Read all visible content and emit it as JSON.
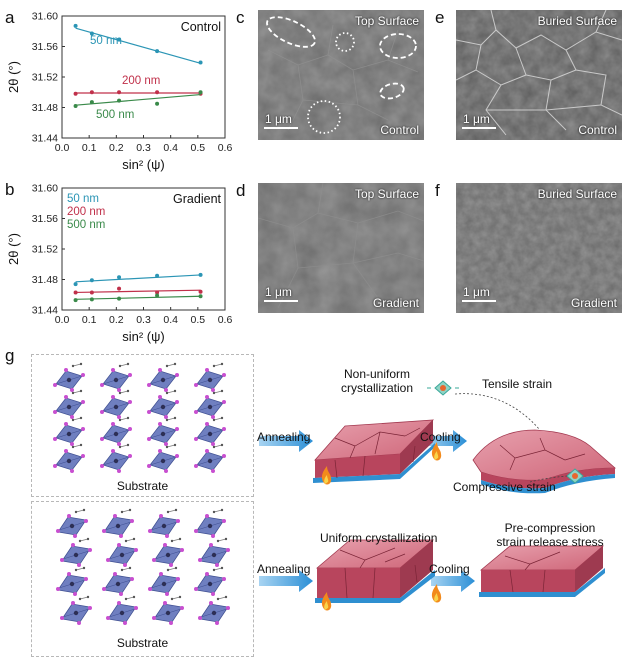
{
  "panels": {
    "a": "a",
    "b": "b",
    "c": "c",
    "d": "d",
    "e": "e",
    "f": "f",
    "g": "g"
  },
  "chart_data": [
    {
      "type": "scatter",
      "panel": "a",
      "title": "Control",
      "xlabel": "sin² (ψ)",
      "ylabel": "2θ (°)",
      "xlim": [
        0.0,
        0.6
      ],
      "ylim": [
        31.44,
        31.6
      ],
      "xticks": [
        "0.0",
        "0.1",
        "0.2",
        "0.3",
        "0.4",
        "0.5",
        "0.6"
      ],
      "yticks": [
        "31.44",
        "31.48",
        "31.52",
        "31.56",
        "31.60"
      ],
      "series": [
        {
          "name": "50 nm",
          "color": "#2b95b5",
          "x": [
            0.05,
            0.11,
            0.21,
            0.35,
            0.51
          ],
          "y": [
            31.587,
            31.577,
            31.569,
            31.554,
            31.539
          ],
          "fit": [
            [
              0.05,
              31.584
            ],
            [
              0.51,
              31.538
            ]
          ]
        },
        {
          "name": "200 nm",
          "color": "#c0304a",
          "x": [
            0.05,
            0.11,
            0.21,
            0.35,
            0.51
          ],
          "y": [
            31.498,
            31.5,
            31.5,
            31.5,
            31.498
          ],
          "fit": [
            [
              0.05,
              31.499
            ],
            [
              0.51,
              31.499
            ]
          ]
        },
        {
          "name": "500 nm",
          "color": "#3a8a4a",
          "x": [
            0.05,
            0.11,
            0.21,
            0.35,
            0.51
          ],
          "y": [
            31.482,
            31.487,
            31.489,
            31.485,
            31.5
          ],
          "fit": [
            [
              0.05,
              31.483
            ],
            [
              0.51,
              31.497
            ]
          ]
        }
      ]
    },
    {
      "type": "scatter",
      "panel": "b",
      "title": "Gradient",
      "xlabel": "sin² (ψ)",
      "ylabel": "2θ (°)",
      "xlim": [
        0.0,
        0.6
      ],
      "ylim": [
        31.44,
        31.6
      ],
      "xticks": [
        "0.0",
        "0.1",
        "0.2",
        "0.3",
        "0.4",
        "0.5",
        "0.6"
      ],
      "yticks": [
        "31.44",
        "31.48",
        "31.52",
        "31.56",
        "31.60"
      ],
      "series": [
        {
          "name": "50 nm",
          "color": "#2b95b5",
          "x": [
            0.05,
            0.11,
            0.21,
            0.35,
            0.51
          ],
          "y": [
            31.474,
            31.479,
            31.483,
            31.485,
            31.486
          ],
          "fit": [
            [
              0.05,
              31.477
            ],
            [
              0.51,
              31.486
            ]
          ]
        },
        {
          "name": "200 nm",
          "color": "#c0304a",
          "x": [
            0.05,
            0.11,
            0.21,
            0.35,
            0.51
          ],
          "y": [
            31.463,
            31.463,
            31.468,
            31.463,
            31.464
          ],
          "fit": [
            [
              0.05,
              31.463
            ],
            [
              0.51,
              31.466
            ]
          ]
        },
        {
          "name": "500 nm",
          "color": "#3a8a4a",
          "x": [
            0.05,
            0.11,
            0.21,
            0.35,
            0.51
          ],
          "y": [
            31.453,
            31.454,
            31.455,
            31.459,
            31.458
          ],
          "fit": [
            [
              0.05,
              31.454
            ],
            [
              0.51,
              31.458
            ]
          ]
        }
      ]
    }
  ],
  "sem": {
    "c_top": "Top Surface",
    "c_bottom": "Control",
    "c_scale": "1 μm",
    "d_top": "Top Surface",
    "d_bottom": "Gradient",
    "d_scale": "1 μm",
    "e_top": "Buried Surface",
    "e_bottom": "Control",
    "e_scale": "1 μm",
    "f_top": "Buried Surface",
    "f_bottom": "Gradient",
    "f_scale": "1 μm"
  },
  "diagram": {
    "substrate_top": "Substrate",
    "substrate_bottom": "Substrate",
    "annealing_top": "Annealing",
    "annealing_bottom": "Annealing",
    "cooling_top": "Cooling",
    "cooling_bottom": "Cooling",
    "nonuniform_1": "Non-uniform",
    "nonuniform_2": "crystallization",
    "uniform": "Uniform crystallization",
    "tensile": "Tensile strain",
    "compressive": "Compressive strain",
    "precomp_1": "Pre-compression",
    "precomp_2": "strain release stress"
  },
  "colors": {
    "block_top": "#d46a7e",
    "block_side": "#b8455d",
    "substrate_blue": "#2f8fd0",
    "arrow_blue": "#2b8fd6",
    "octahedron": "#6f7fc0",
    "atom": "#c84fd0"
  }
}
